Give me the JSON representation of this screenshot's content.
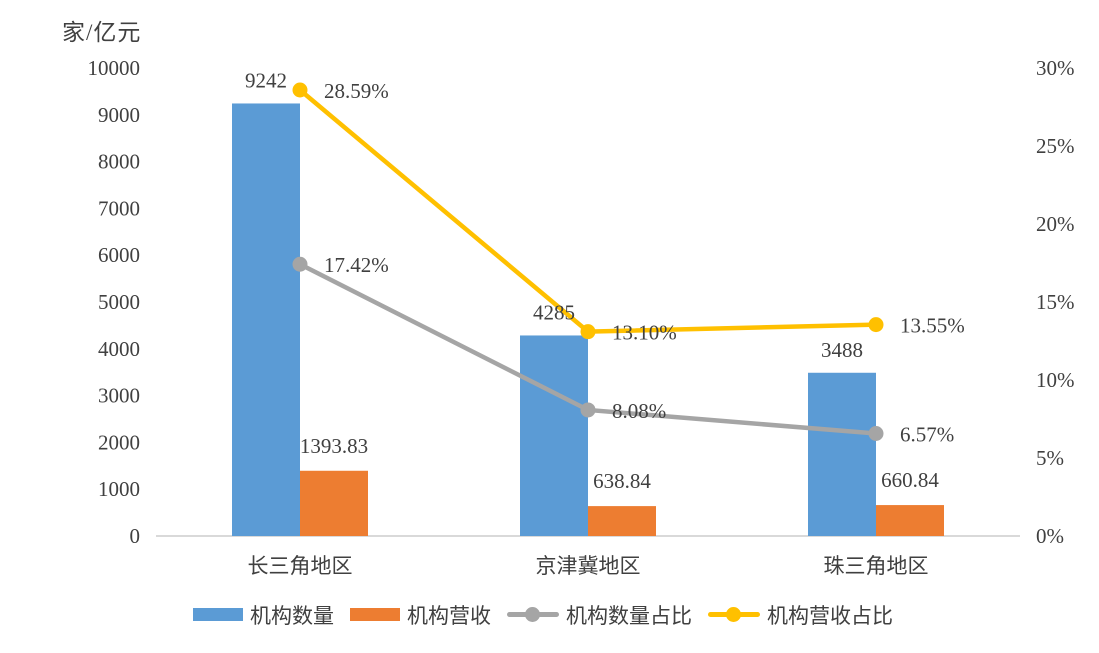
{
  "colors": {
    "text": "#404040",
    "axis_line": "#D9D9D9",
    "bar_blue": "#5B9BD5",
    "bar_orange": "#ED7D31",
    "line_gray": "#A5A5A5",
    "line_gold": "#FFC000"
  },
  "chart_data": {
    "type": "combo-bar-line",
    "unit_label": "家/亿元",
    "categories": [
      "长三角地区",
      "京津冀地区",
      "珠三角地区"
    ],
    "series": [
      {
        "name": "机构数量",
        "type": "bar",
        "axis": "left",
        "color": "#5B9BD5",
        "values": [
          9242,
          4285,
          3488
        ],
        "labels": [
          "9242",
          "4285",
          "3488"
        ]
      },
      {
        "name": "机构营收",
        "type": "bar",
        "axis": "left",
        "color": "#ED7D31",
        "values": [
          1393.83,
          638.84,
          660.84
        ],
        "labels": [
          "1393.83",
          "638.84",
          "660.84"
        ]
      },
      {
        "name": "机构数量占比",
        "type": "line",
        "axis": "right",
        "color": "#A5A5A5",
        "values": [
          17.42,
          8.08,
          6.57
        ],
        "labels": [
          "17.42%",
          "8.08%",
          "6.57%"
        ]
      },
      {
        "name": "机构营收占比",
        "type": "line",
        "axis": "right",
        "color": "#FFC000",
        "values": [
          28.59,
          13.1,
          13.55
        ],
        "labels": [
          "28.59%",
          "13.10%",
          "13.55%"
        ]
      }
    ],
    "left_axis": {
      "min": 0,
      "max": 10000,
      "ticks": [
        "0",
        "1000",
        "2000",
        "3000",
        "4000",
        "5000",
        "6000",
        "7000",
        "8000",
        "9000",
        "10000"
      ]
    },
    "right_axis": {
      "min": 0,
      "max": 30,
      "ticks": [
        "0%",
        "5%",
        "10%",
        "15%",
        "20%",
        "25%",
        "30%"
      ]
    },
    "grid": false,
    "legend_position": "bottom"
  }
}
